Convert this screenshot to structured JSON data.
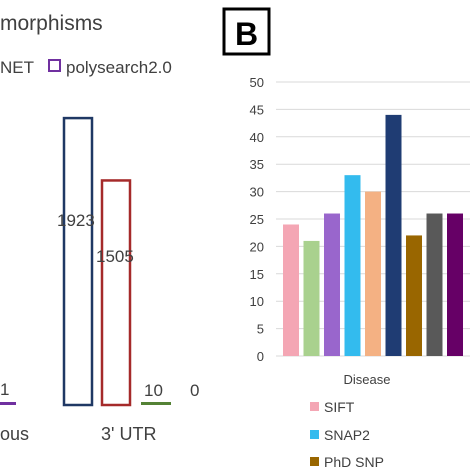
{
  "chart_data": [
    {
      "type": "bar",
      "panel": "A",
      "title": "morphisms",
      "legend": [
        {
          "label": "NET",
          "color": "#1f3864"
        },
        {
          "label": "polysearch2.0",
          "color": "#7030a0"
        }
      ],
      "categories": [
        "ous",
        "3' UTR"
      ],
      "series": [
        {
          "name": "NET",
          "color": "#1f3864",
          "values": [
            null,
            1923
          ]
        },
        {
          "name": "",
          "color": "#a52a2a",
          "values": [
            null,
            1505
          ]
        },
        {
          "name": "",
          "color": "#548235",
          "values": [
            null,
            10
          ]
        },
        {
          "name": "polysearch2.0",
          "color": "#7030a0",
          "values": [
            1,
            0
          ]
        }
      ],
      "labels": [
        "1",
        "1923",
        "1505",
        "10",
        "0"
      ],
      "ylim": [
        0,
        2500
      ],
      "grid": false,
      "legend_position": "top"
    },
    {
      "type": "bar",
      "panel": "B",
      "panel_label": "B",
      "categories": [
        "Disease"
      ],
      "xlabel": "Disease",
      "ylim": [
        0,
        50
      ],
      "yticks": [
        0,
        5,
        10,
        15,
        20,
        25,
        30,
        35,
        40,
        45,
        50
      ],
      "grid": true,
      "legend_position": "bottom",
      "series": [
        {
          "name": "SIFT",
          "color": "#f4a6b4",
          "values": [
            24
          ]
        },
        {
          "name": "",
          "color": "#a9d18e",
          "values": [
            21
          ]
        },
        {
          "name": "",
          "color": "#9966cc",
          "values": [
            26
          ]
        },
        {
          "name": "SNAP2",
          "color": "#33bbee",
          "values": [
            33
          ]
        },
        {
          "name": "",
          "color": "#f4b183",
          "values": [
            30
          ]
        },
        {
          "name": "",
          "color": "#1f3c73",
          "values": [
            44
          ]
        },
        {
          "name": "PhD SNP",
          "color": "#996600",
          "values": [
            22
          ]
        },
        {
          "name": "",
          "color": "#595959",
          "values": [
            26
          ]
        },
        {
          "name": "",
          "color": "#660066",
          "values": [
            26
          ]
        }
      ]
    }
  ]
}
